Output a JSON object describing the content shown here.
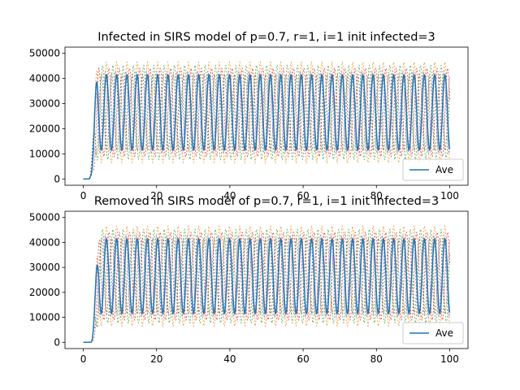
{
  "colors": {
    "ave": "#1f77b4",
    "runs": [
      "#ff7f0e",
      "#2ca02c",
      "#d62728",
      "#9467bd",
      "#8c564b"
    ]
  },
  "chart_data": [
    {
      "type": "line",
      "title": "Infected in SIRS model of p=0.7, r=1, i=1 init infected=3",
      "xlabel": "",
      "ylabel": "",
      "xlim": [
        -5,
        105
      ],
      "ylim": [
        -2500,
        52500
      ],
      "xticks": [
        "0",
        "20",
        "40",
        "60",
        "80",
        "100"
      ],
      "yticks": [
        "0",
        "10000",
        "20000",
        "30000",
        "40000",
        "50000"
      ],
      "legend": {
        "position": "lower-right",
        "entries": [
          "Ave"
        ]
      },
      "grid": false,
      "dynamics": {
        "start_t": 0,
        "end_t": 100,
        "rise_start": 1.5,
        "rise_end": 4.0,
        "period": 2.8,
        "mean": 26500,
        "amplitude": 15000,
        "runs_amplitude": 20000
      },
      "series": [
        {
          "name": "Ave",
          "style": "solid"
        }
      ]
    },
    {
      "type": "line",
      "title": "Removed in SIRS model of p=0.7, r=1, i=1 init infected=3",
      "xlabel": "",
      "ylabel": "",
      "xlim": [
        -5,
        105
      ],
      "ylim": [
        -2500,
        52500
      ],
      "xticks": [
        "0",
        "20",
        "40",
        "60",
        "80",
        "100"
      ],
      "yticks": [
        "0",
        "10000",
        "20000",
        "30000",
        "40000",
        "50000"
      ],
      "legend": {
        "position": "lower-right",
        "entries": [
          "Ave"
        ]
      },
      "grid": false,
      "dynamics": {
        "start_t": 0,
        "end_t": 100,
        "rise_start": 2.0,
        "rise_end": 4.5,
        "period": 2.8,
        "mean": 26500,
        "amplitude": 15000,
        "runs_amplitude": 20000
      },
      "series": [
        {
          "name": "Ave",
          "style": "solid"
        }
      ]
    }
  ]
}
